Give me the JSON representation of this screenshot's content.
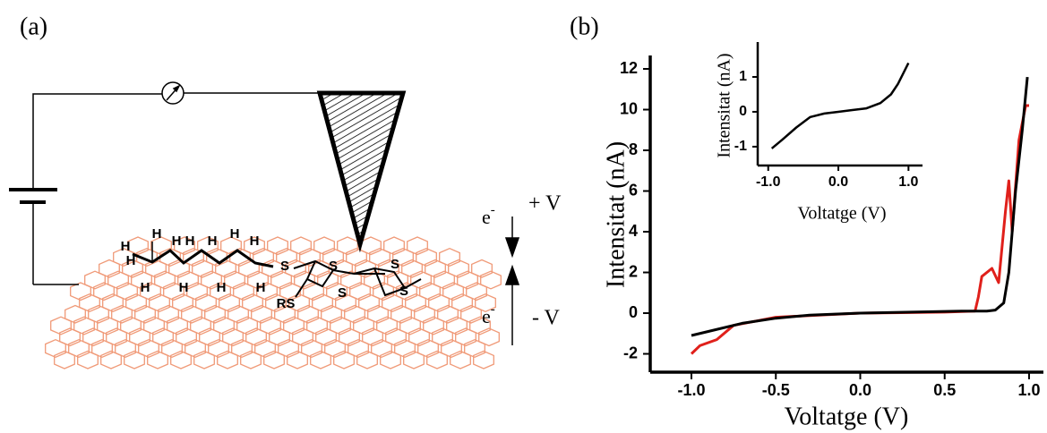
{
  "panel_labels": [
    "(a)",
    "(b)"
  ],
  "diagram": {
    "electrons": [
      {
        "base": "e",
        "sup": "-"
      },
      {
        "base": "e",
        "sup": "-"
      }
    ],
    "bias_labels": [
      "+ V",
      "- V"
    ],
    "atoms": [
      "H",
      "H",
      "H",
      "H",
      "H",
      "H",
      "H",
      "H",
      "H",
      "H",
      "H",
      "H",
      "S",
      "S",
      "S",
      "S",
      "S",
      "RS"
    ]
  },
  "chart_data": [
    {
      "type": "line",
      "xlabel": "Voltatge (V)",
      "ylabel": "Intensitat (nA)",
      "xlim": [
        -1.244,
        1.085
      ],
      "ylim": [
        -2.9,
        12.66
      ],
      "xticks": [
        {
          "value": -1,
          "label": "-1.0"
        },
        {
          "value": -0.5,
          "label": "-0.5"
        },
        {
          "value": 0,
          "label": "0.0"
        },
        0.5,
        {
          "value": 1,
          "label": "1.0"
        }
      ],
      "yticks": [
        -2,
        0,
        2,
        4,
        6,
        8,
        10,
        12
      ],
      "series": [
        {
          "color": "#e0201b",
          "x": [
            -1.0,
            -0.95,
            -0.85,
            -0.75,
            -0.5,
            0.0,
            0.5,
            0.68,
            0.7,
            0.72,
            0.78,
            0.82,
            0.86,
            0.88,
            0.9,
            0.94,
            0.98,
            1.0
          ],
          "values": [
            -2.0,
            -1.6,
            -1.3,
            -0.6,
            -0.2,
            0.0,
            0.05,
            0.1,
            0.8,
            1.8,
            2.2,
            1.5,
            5.0,
            6.5,
            4.0,
            8.5,
            10.2,
            10.2
          ]
        },
        {
          "color": "#000000",
          "x": [
            -1.0,
            -0.9,
            -0.7,
            -0.5,
            -0.3,
            0.0,
            0.3,
            0.6,
            0.75,
            0.8,
            0.85,
            0.88,
            0.92,
            0.96,
            0.99
          ],
          "values": [
            -1.1,
            -0.9,
            -0.5,
            -0.25,
            -0.1,
            0.0,
            0.05,
            0.1,
            0.1,
            0.15,
            0.5,
            2.0,
            6.0,
            9.0,
            11.6
          ]
        }
      ]
    },
    {
      "type": "line",
      "xlabel": "Voltatge (V)",
      "ylabel": "Intensitat (nA)",
      "xlim": [
        -1.15,
        1.2
      ],
      "ylim": [
        -1.54,
        2.0
      ],
      "xticks": [
        {
          "value": -1,
          "label": "-1.0"
        },
        {
          "value": 0,
          "label": "0.0"
        },
        {
          "value": 1,
          "label": "1.0"
        }
      ],
      "yticks": [
        -1,
        0,
        1
      ],
      "series": [
        {
          "color": "#000000",
          "x": [
            -0.95,
            -0.8,
            -0.6,
            -0.4,
            -0.2,
            0.0,
            0.2,
            0.4,
            0.6,
            0.75,
            0.85,
            1.0
          ],
          "values": [
            -1.05,
            -0.8,
            -0.45,
            -0.15,
            -0.05,
            0.0,
            0.05,
            0.1,
            0.25,
            0.5,
            0.8,
            1.4
          ]
        }
      ]
    }
  ]
}
